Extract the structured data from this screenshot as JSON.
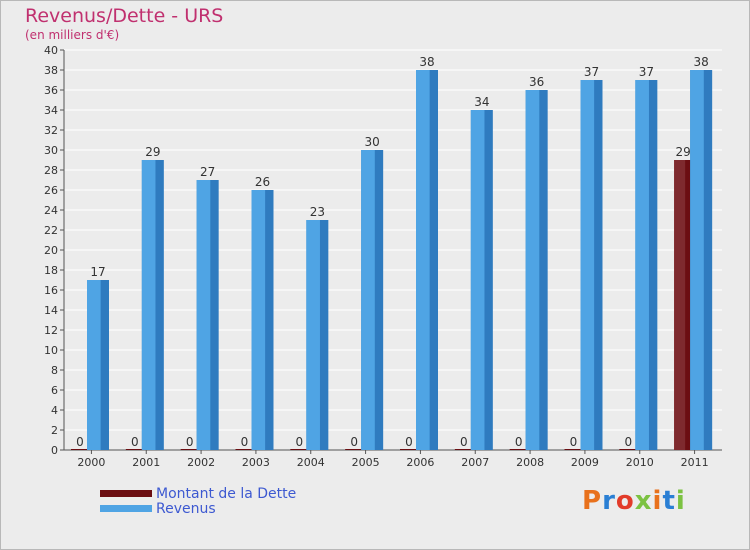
{
  "title": "Revenus/Dette - URS",
  "subtitle": "(en milliers d'€)",
  "legend": [
    {
      "label": "Montant de la Dette",
      "color": "#6b0e12"
    },
    {
      "label": "Revenus",
      "color": "#4fa4e4"
    }
  ],
  "logo": {
    "text": "Proxiti",
    "colors": [
      "#e8711c",
      "#2a7fd4",
      "#e23b2a",
      "#7cc242",
      "#e8711c",
      "#2a7fd4",
      "#7cc242"
    ]
  },
  "chart_data": {
    "type": "bar",
    "categories": [
      "2000",
      "2001",
      "2002",
      "2003",
      "2004",
      "2005",
      "2006",
      "2007",
      "2008",
      "2009",
      "2010",
      "2011"
    ],
    "series": [
      {
        "name": "Montant de la Dette",
        "values": [
          0,
          0,
          0,
          0,
          0,
          0,
          0,
          0,
          0,
          0,
          0,
          29
        ],
        "color": "#6b0e12"
      },
      {
        "name": "Revenus",
        "values": [
          17,
          29,
          27,
          26,
          23,
          30,
          38,
          34,
          36,
          37,
          37,
          38
        ],
        "color": "#4fa4e4"
      }
    ],
    "title": "Revenus/Dette - URS",
    "ylabel": "",
    "xlabel": "",
    "ylim": [
      0,
      40
    ],
    "yticks": [
      0,
      2,
      4,
      6,
      8,
      10,
      12,
      14,
      16,
      18,
      20,
      22,
      24,
      26,
      28,
      30,
      32,
      34,
      36,
      38,
      40
    ],
    "grid": true,
    "legend_position": "bottom-left"
  }
}
